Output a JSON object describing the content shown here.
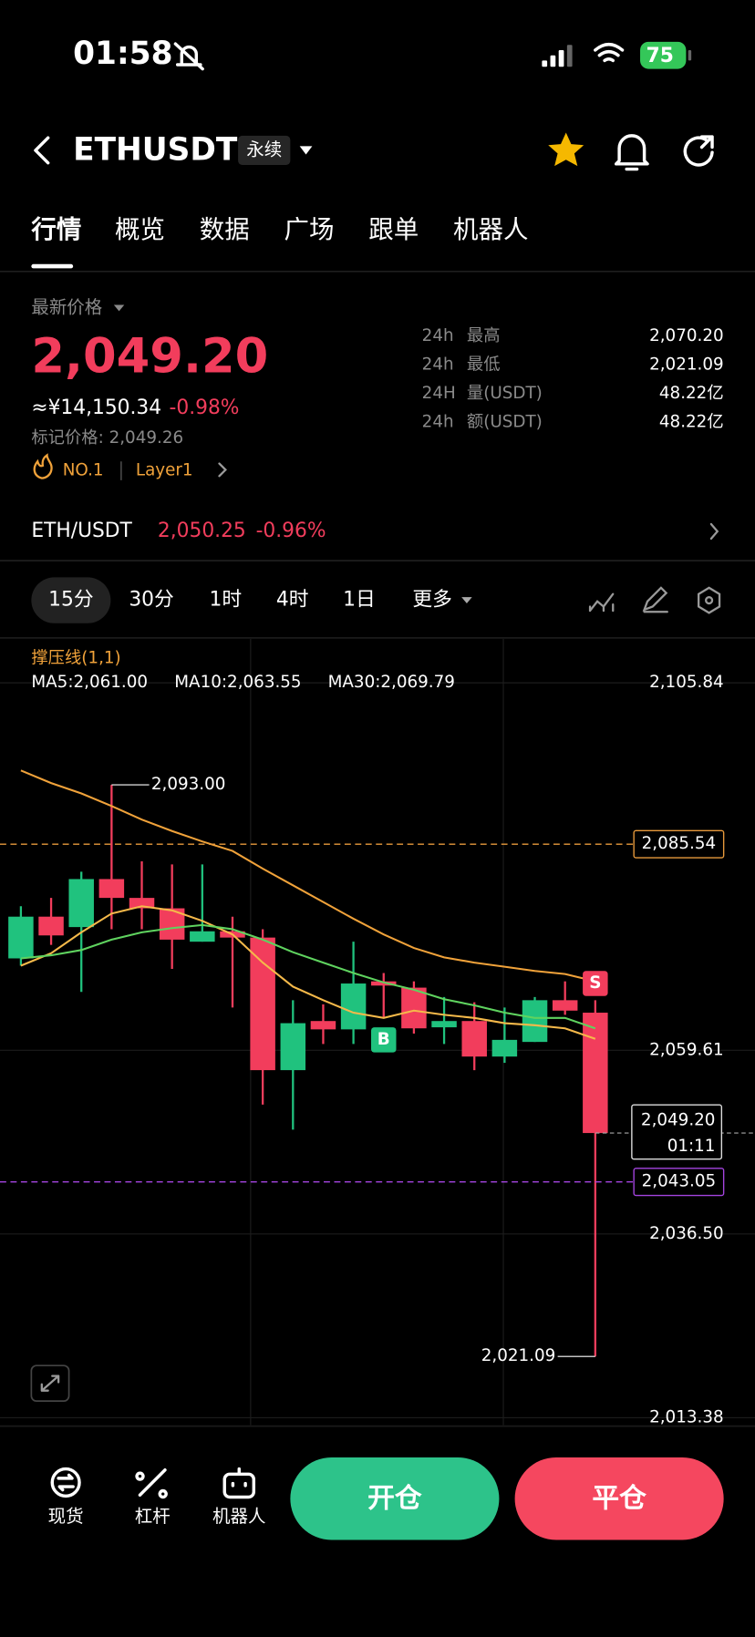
{
  "status_bar": {
    "time": "01:58",
    "battery": "75"
  },
  "header": {
    "symbol": "ETHUSDT",
    "contract_type": "永续"
  },
  "tabs": [
    "行情",
    "概览",
    "数据",
    "广场",
    "跟单",
    "机器人"
  ],
  "price_panel": {
    "label": "最新价格",
    "last_price": "2,049.20",
    "cny_price": "≈¥14,150.34",
    "change": "-0.98%",
    "mark_price": "标记价格: 2,049.26",
    "rank": "NO.1",
    "tag": "Layer1",
    "stats": [
      {
        "period": "24h",
        "label": "最高",
        "value": "2,070.20"
      },
      {
        "period": "24h",
        "label": "最低",
        "value": "2,021.09"
      },
      {
        "period": "24H",
        "label": "量(USDT)",
        "value": "48.22亿"
      },
      {
        "period": "24h",
        "label": "额(USDT)",
        "value": "48.22亿"
      }
    ]
  },
  "spot_pair": {
    "pair": "ETH/USDT",
    "price": "2,050.25",
    "change": "-0.96%"
  },
  "intervals": [
    "15分",
    "30分",
    "1时",
    "4时",
    "1日",
    "更多"
  ],
  "chart_data": {
    "type": "candlestick",
    "indicator": "撑压线(1,1)",
    "up_color": "#20c27e",
    "down_color": "#f23d5c",
    "grid": true,
    "ylim": [
      2012.46,
      2111.36
    ],
    "yticks": [
      {
        "value": 2105.84,
        "label": "2,105.84"
      },
      {
        "value": 2059.61,
        "label": "2,059.61"
      },
      {
        "value": 2036.5,
        "label": "2,036.50"
      },
      {
        "value": 2013.38,
        "label": "2,013.38"
      }
    ],
    "candles": [
      {
        "open": 2071.17,
        "high": 2077.73,
        "low": 2070.25,
        "close": 2076.42
      },
      {
        "open": 2076.42,
        "high": 2078.78,
        "low": 2072.87,
        "close": 2074.06
      },
      {
        "open": 2075.11,
        "high": 2082.07,
        "low": 2066.96,
        "close": 2081.15
      },
      {
        "open": 2081.15,
        "high": 2093.0,
        "low": 2074.84,
        "close": 2078.78
      },
      {
        "open": 2078.78,
        "high": 2083.38,
        "low": 2074.84,
        "close": 2077.47
      },
      {
        "open": 2077.47,
        "high": 2082.99,
        "low": 2069.85,
        "close": 2073.53
      },
      {
        "open": 2073.27,
        "high": 2082.99,
        "low": 2073.27,
        "close": 2074.58
      },
      {
        "open": 2074.58,
        "high": 2076.42,
        "low": 2064.99,
        "close": 2073.79
      },
      {
        "open": 2073.79,
        "high": 2074.84,
        "low": 2052.78,
        "close": 2057.11
      },
      {
        "open": 2057.11,
        "high": 2065.91,
        "low": 2049.63,
        "close": 2063.02
      },
      {
        "open": 2063.29,
        "high": 2065.39,
        "low": 2060.4,
        "close": 2062.24
      },
      {
        "open": 2062.24,
        "high": 2073.27,
        "low": 2060.4,
        "close": 2068.01
      },
      {
        "open": 2068.28,
        "high": 2069.33,
        "low": 2063.68,
        "close": 2067.75
      },
      {
        "open": 2067.49,
        "high": 2068.28,
        "low": 2061.71,
        "close": 2062.37
      },
      {
        "open": 2062.5,
        "high": 2066.31,
        "low": 2060.4,
        "close": 2063.29
      },
      {
        "open": 2063.29,
        "high": 2065.65,
        "low": 2057.11,
        "close": 2058.82
      },
      {
        "open": 2058.82,
        "high": 2064.99,
        "low": 2058.03,
        "close": 2060.92
      },
      {
        "open": 2060.66,
        "high": 2066.31,
        "low": 2060.66,
        "close": 2065.91
      },
      {
        "open": 2065.91,
        "high": 2068.28,
        "low": 2064.07,
        "close": 2064.6
      },
      {
        "open": 2064.34,
        "high": 2065.91,
        "low": 2021.09,
        "close": 2049.2
      }
    ],
    "series": [
      {
        "label": "MA5:2,061.00",
        "color": "#f5b94a",
        "values": [
          2070.25,
          2071.82,
          2074.45,
          2076.81,
          2077.73,
          2077.21,
          2075.89,
          2074.19,
          2070.64,
          2067.62,
          2065.91,
          2064.34,
          2063.68,
          2064.6,
          2064.07,
          2063.68,
          2063.02,
          2062.76,
          2062.37,
          2061.05
        ]
      },
      {
        "label": "MA10:2,063.55",
        "color": "#5fd35f",
        "values": [
          2071.17,
          2071.56,
          2072.22,
          2073.53,
          2074.45,
          2074.98,
          2075.37,
          2074.84,
          2073.53,
          2071.95,
          2070.64,
          2069.33,
          2068.15,
          2067.23,
          2066.04,
          2065.26,
          2064.34,
          2063.68,
          2063.68,
          2062.37
        ]
      },
      {
        "label": "MA30:2,069.79",
        "color": "#f0a23a",
        "values": [
          2094.81,
          2093.23,
          2091.92,
          2090.34,
          2088.63,
          2087.19,
          2085.88,
          2084.69,
          2082.46,
          2080.36,
          2078.26,
          2076.16,
          2074.19,
          2072.48,
          2071.3,
          2070.64,
          2070.12,
          2069.59,
          2069.2,
          2068.28
        ]
      }
    ],
    "lines": [
      {
        "value": 2085.54,
        "label": "2,085.54",
        "color": "#e89a3c"
      },
      {
        "value": 2043.05,
        "label": "2,043.05",
        "color": "#a444e0"
      }
    ],
    "last_price": {
      "value": 2049.2,
      "label": "2,049.20",
      "countdown": "01:11"
    },
    "annotations": [
      {
        "value": 2093.0,
        "label": "2,093.00",
        "index": 3,
        "side": "right"
      },
      {
        "value": 2021.09,
        "label": "2,021.09",
        "index": 19,
        "side": "left"
      }
    ],
    "signals": [
      {
        "label": "B",
        "index": 12,
        "position": "below",
        "color": "#20c27e"
      },
      {
        "label": "S",
        "index": 19,
        "position": "above",
        "color": "#f23d5c"
      }
    ]
  },
  "bottom_bar": {
    "items": [
      "现货",
      "杠杆",
      "机器人"
    ],
    "open_button": "开仓",
    "close_button": "平仓"
  }
}
